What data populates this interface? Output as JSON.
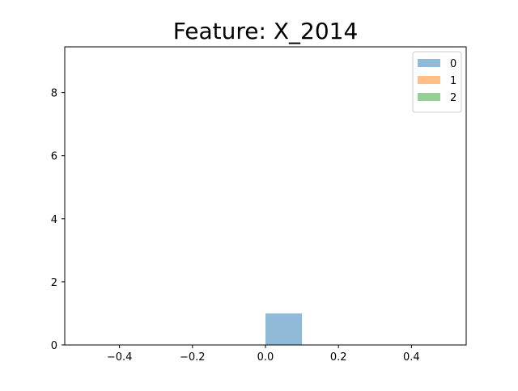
{
  "chart_data": {
    "type": "bar",
    "title": "Feature: X_2014",
    "xlabel": "",
    "ylabel": "",
    "xlim": [
      -0.55,
      0.55
    ],
    "ylim": [
      0,
      9.45
    ],
    "x_ticks": [
      -0.4,
      -0.2,
      0.0,
      0.2,
      0.4
    ],
    "x_tick_labels": [
      "−0.4",
      "−0.2",
      "0.0",
      "0.2",
      "0.4"
    ],
    "y_ticks": [
      0,
      2,
      4,
      6,
      8
    ],
    "y_tick_labels": [
      "0",
      "2",
      "4",
      "6",
      "8"
    ],
    "grid": false,
    "legend_position": "top-right",
    "series": [
      {
        "name": "0",
        "color": "#1f77b4",
        "alpha": 0.5,
        "bins": [
          {
            "x0": 0.0,
            "x1": 0.1,
            "count": 1
          }
        ]
      },
      {
        "name": "1",
        "color": "#ff7f0e",
        "alpha": 0.5,
        "bins": []
      },
      {
        "name": "2",
        "color": "#2ca02c",
        "alpha": 0.5,
        "bins": []
      }
    ]
  }
}
